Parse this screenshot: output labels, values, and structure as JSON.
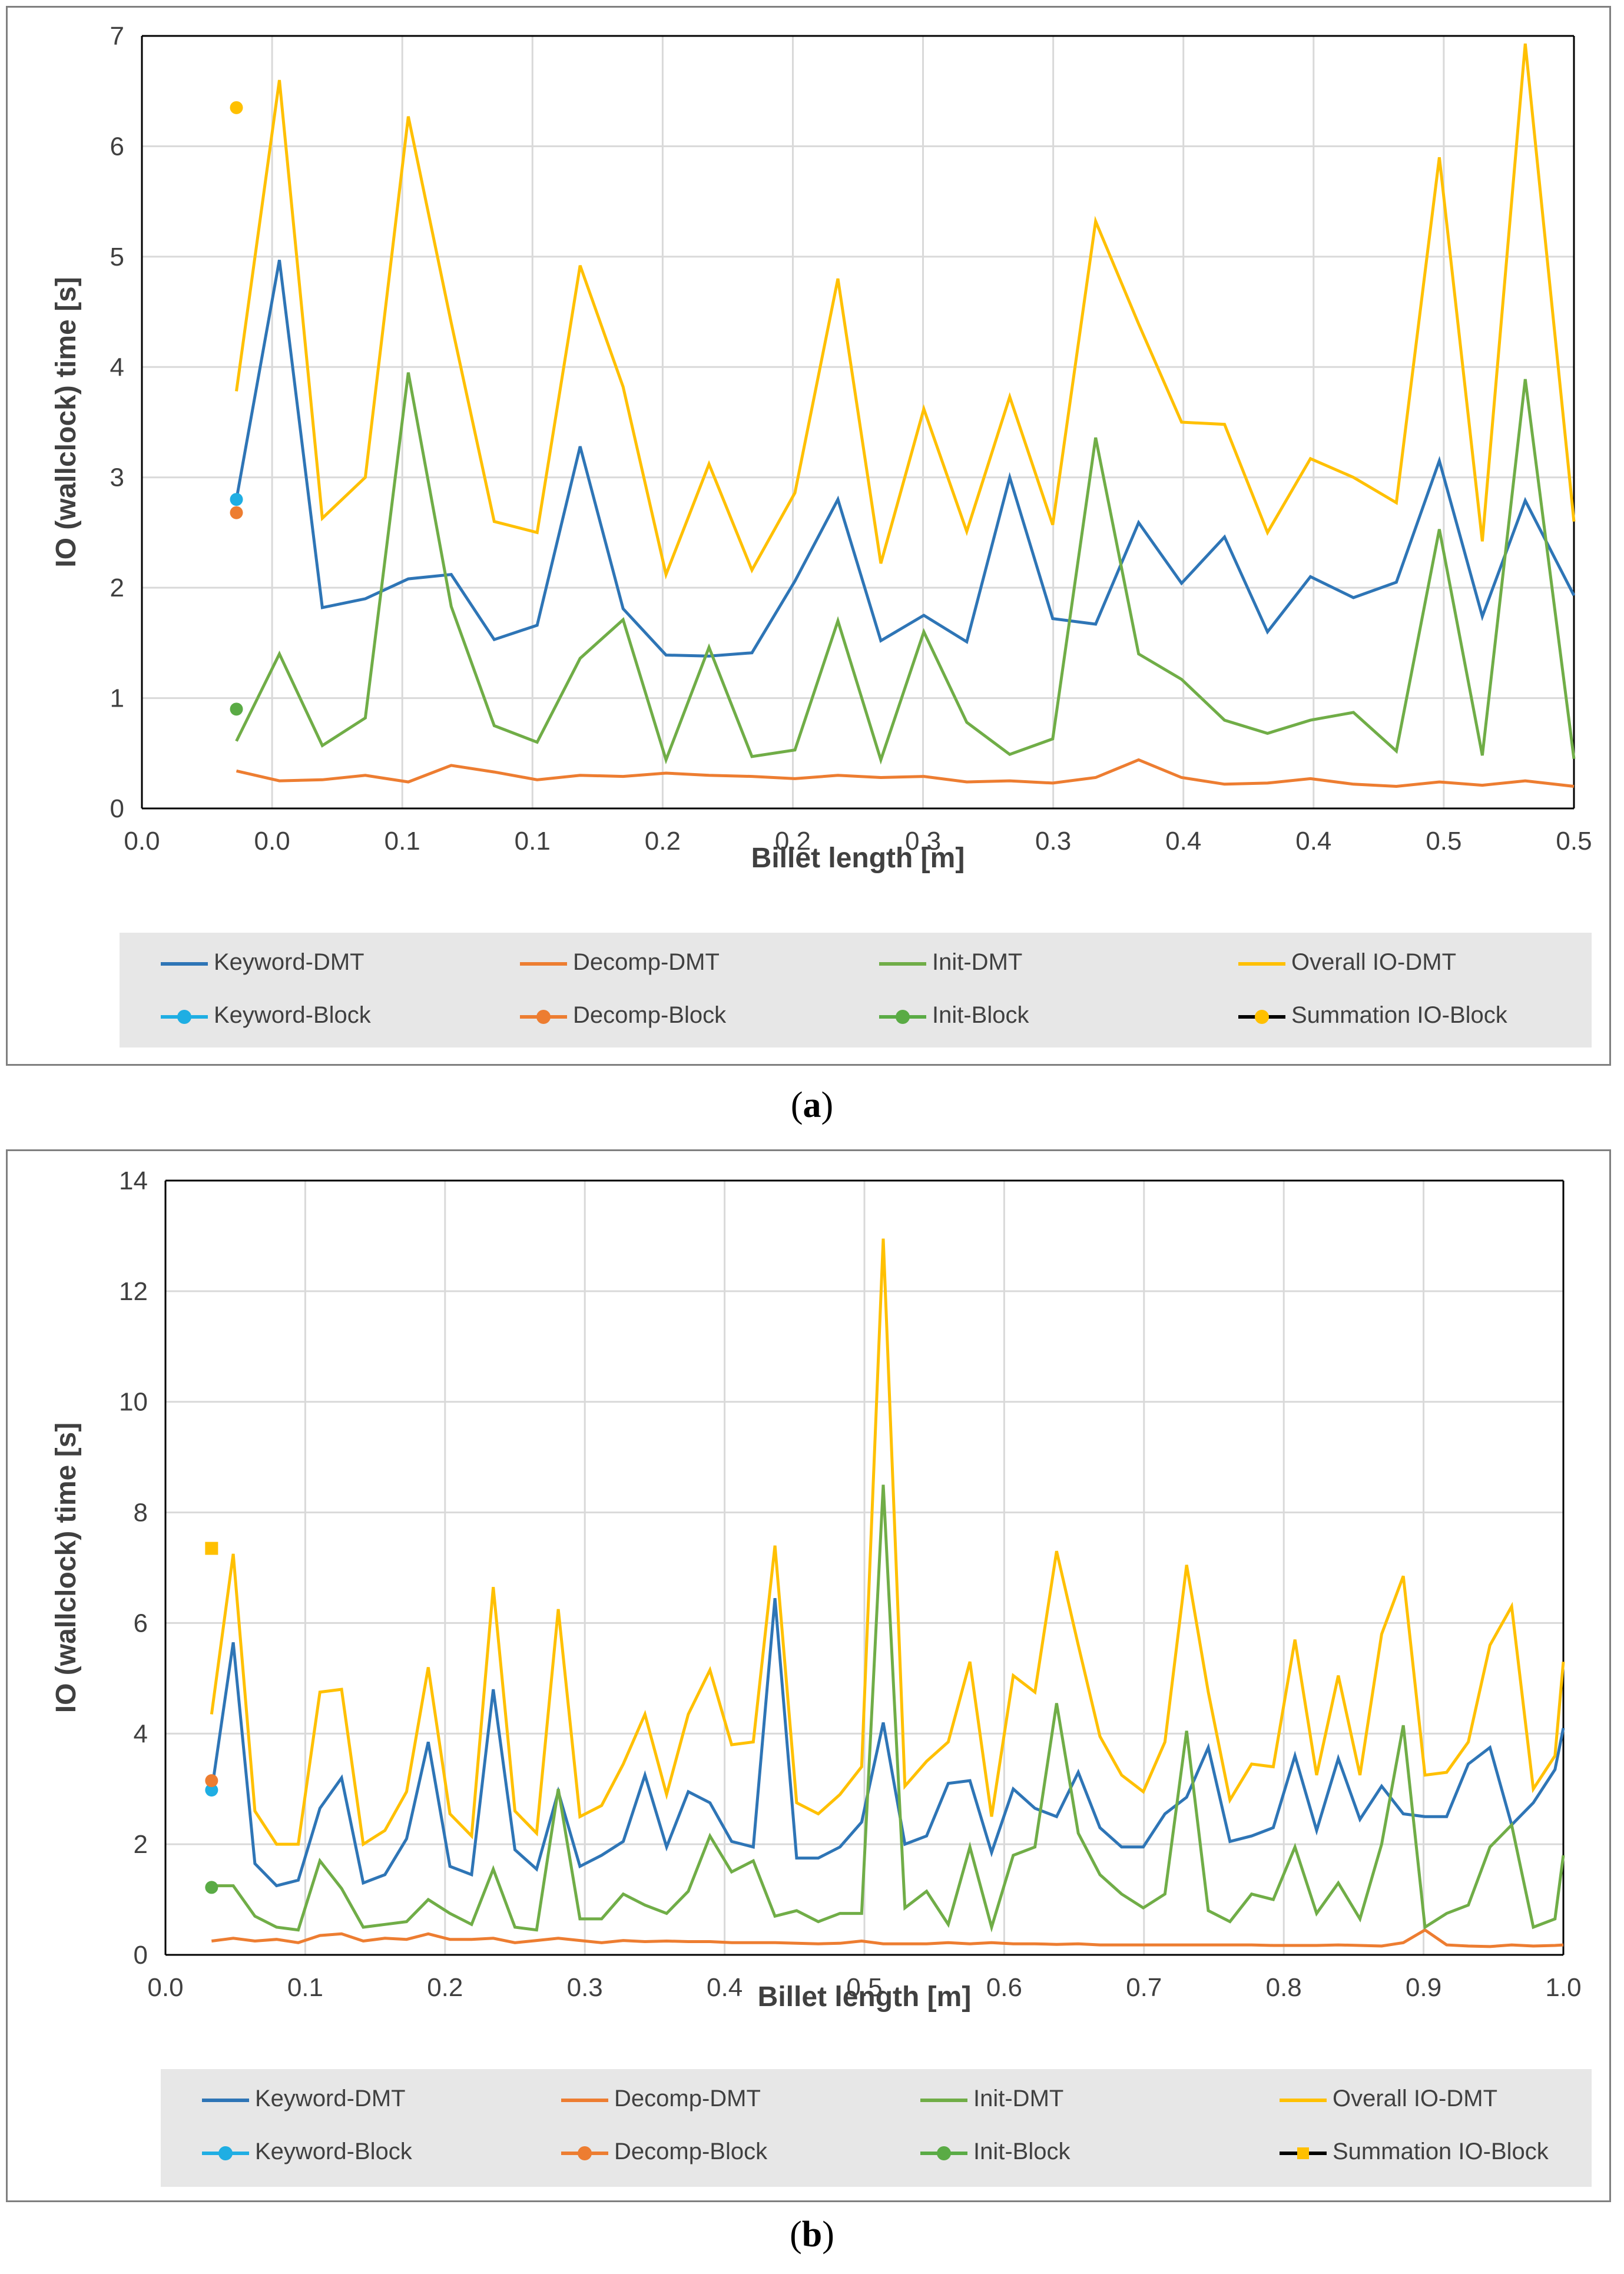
{
  "figures": [
    {
      "caption_label": "a",
      "legend": {
        "row1": [
          "Keyword-DMT",
          "Decomp-DMT",
          "Init-DMT",
          "Overall IO-DMT"
        ],
        "row2": [
          "Keyword-Block",
          "Decomp-Block",
          "Init-Block",
          "Summation IO-Block"
        ]
      }
    },
    {
      "caption_label": "b",
      "legend": {
        "row1": [
          "Keyword-DMT",
          "Decomp-DMT",
          "Init-DMT",
          "Overall IO-DMT"
        ],
        "row2": [
          "Keyword-Block",
          "Decomp-Block",
          "Init-Block",
          "Summation IO-Block"
        ]
      }
    }
  ],
  "colors": {
    "keyword": "#2e75b6",
    "decomp": "#ed7d31",
    "init": "#70ad47",
    "overall": "#ffc000",
    "keyword_block": "#1faee3",
    "decomp_block": "#ed7d31",
    "init_block": "#5aab45",
    "summation_block": "#ffc000",
    "grid": "#d9d9d9",
    "axis_text": "#404040"
  },
  "chart_data": [
    {
      "type": "line",
      "title": "",
      "xlabel": "Billet length [m]",
      "ylabel": "IO (wallclock) time [s]",
      "xlim": [
        0.0,
        0.5
      ],
      "ylim": [
        0,
        7
      ],
      "grid": true,
      "legend_position": "bottom",
      "x_tick_labels": [
        "0.0",
        "0.0",
        "0.1",
        "0.1",
        "0.2",
        "0.2",
        "0.3",
        "0.3",
        "0.4",
        "0.4",
        "0.5",
        "0.5"
      ],
      "y_ticks": [
        0,
        1,
        2,
        3,
        4,
        5,
        6,
        7
      ],
      "x": [
        0.033,
        0.048,
        0.063,
        0.078,
        0.093,
        0.108,
        0.123,
        0.138,
        0.153,
        0.168,
        0.183,
        0.198,
        0.213,
        0.228,
        0.243,
        0.258,
        0.273,
        0.288,
        0.303,
        0.318,
        0.333,
        0.348,
        0.363,
        0.378,
        0.393,
        0.408,
        0.423,
        0.438,
        0.453,
        0.468,
        0.483,
        0.5
      ],
      "series": [
        {
          "name": "Keyword-DMT",
          "values": [
            2.8,
            4.97,
            1.82,
            1.9,
            2.08,
            2.12,
            1.53,
            1.66,
            3.28,
            1.81,
            1.39,
            1.38,
            1.41,
            2.06,
            2.8,
            1.52,
            1.75,
            1.51,
            3.0,
            1.72,
            1.67,
            2.59,
            2.04,
            2.46,
            1.6,
            2.1,
            1.91,
            2.05,
            3.15,
            1.74,
            2.79,
            1.93
          ]
        },
        {
          "name": "Decomp-DMT",
          "values": [
            0.34,
            0.25,
            0.26,
            0.3,
            0.24,
            0.39,
            0.33,
            0.26,
            0.3,
            0.29,
            0.32,
            0.3,
            0.29,
            0.27,
            0.3,
            0.28,
            0.29,
            0.24,
            0.25,
            0.23,
            0.28,
            0.44,
            0.28,
            0.22,
            0.23,
            0.27,
            0.22,
            0.2,
            0.24,
            0.21,
            0.25,
            0.2
          ]
        },
        {
          "name": "Init-DMT",
          "values": [
            0.61,
            1.4,
            0.57,
            0.82,
            3.95,
            1.83,
            0.75,
            0.6,
            1.36,
            1.71,
            0.44,
            1.46,
            0.47,
            0.53,
            1.7,
            0.44,
            1.6,
            0.78,
            0.49,
            0.63,
            3.36,
            1.4,
            1.17,
            0.8,
            0.68,
            0.8,
            0.87,
            0.52,
            2.53,
            0.48,
            3.89,
            0.45
          ]
        },
        {
          "name": "Overall IO-DMT",
          "values": [
            3.78,
            6.6,
            2.63,
            3.0,
            6.27,
            4.4,
            2.6,
            2.5,
            4.92,
            3.82,
            2.12,
            3.12,
            2.16,
            2.86,
            4.8,
            2.22,
            3.62,
            2.51,
            3.73,
            2.57,
            5.32,
            4.39,
            3.5,
            3.48,
            2.5,
            3.17,
            3.0,
            2.77,
            5.9,
            2.42,
            6.93,
            2.6
          ]
        }
      ],
      "block_points": [
        {
          "name": "Keyword-Block",
          "x": 0.033,
          "value": 2.8
        },
        {
          "name": "Decomp-Block",
          "x": 0.033,
          "value": 2.68
        },
        {
          "name": "Init-Block",
          "x": 0.033,
          "value": 0.9
        },
        {
          "name": "Summation IO-Block",
          "x": 0.033,
          "value": 6.35
        }
      ]
    },
    {
      "type": "line",
      "title": "",
      "xlabel": "Billet length [m]",
      "ylabel": "IO (wallclock) time [s]",
      "xlim": [
        0.0,
        1.0
      ],
      "ylim": [
        0,
        14
      ],
      "grid": true,
      "legend_position": "bottom",
      "x_tick_labels": [
        "0.0",
        "0.1",
        "0.2",
        "0.3",
        "0.4",
        "0.5",
        "0.6",
        "0.7",
        "0.8",
        "0.9",
        "1.0"
      ],
      "y_ticks": [
        0,
        2,
        4,
        6,
        8,
        10,
        12,
        14
      ],
      "x": [
        0.033,
        0.0485,
        0.064,
        0.0795,
        0.095,
        0.1105,
        0.126,
        0.1415,
        0.157,
        0.1725,
        0.188,
        0.2035,
        0.219,
        0.2345,
        0.25,
        0.2655,
        0.281,
        0.2965,
        0.312,
        0.3275,
        0.343,
        0.3585,
        0.374,
        0.3895,
        0.405,
        0.4205,
        0.436,
        0.4515,
        0.467,
        0.4825,
        0.498,
        0.5135,
        0.529,
        0.5445,
        0.56,
        0.5755,
        0.591,
        0.6065,
        0.622,
        0.6375,
        0.653,
        0.6685,
        0.684,
        0.6995,
        0.715,
        0.7305,
        0.746,
        0.7615,
        0.777,
        0.7925,
        0.808,
        0.8235,
        0.839,
        0.8545,
        0.87,
        0.8855,
        0.901,
        0.9165,
        0.932,
        0.9475,
        0.963,
        0.9785,
        0.994,
        1.0
      ],
      "series": [
        {
          "name": "Keyword-DMT",
          "values": [
            2.95,
            5.65,
            1.65,
            1.25,
            1.35,
            2.65,
            3.2,
            1.3,
            1.45,
            2.1,
            3.85,
            1.6,
            1.45,
            4.8,
            1.9,
            1.55,
            2.95,
            1.6,
            1.8,
            2.05,
            3.25,
            1.95,
            2.95,
            2.75,
            2.05,
            1.95,
            6.45,
            1.75,
            1.75,
            1.95,
            2.4,
            4.2,
            2.0,
            2.15,
            3.1,
            3.15,
            1.85,
            3.0,
            2.65,
            2.5,
            3.3,
            2.3,
            1.95,
            1.95,
            2.55,
            2.85,
            3.75,
            2.05,
            2.15,
            2.3,
            3.6,
            2.25,
            3.55,
            2.45,
            3.05,
            2.55,
            2.5,
            2.5,
            3.45,
            3.75,
            2.35,
            2.75,
            3.35,
            4.1
          ]
        },
        {
          "name": "Decomp-DMT",
          "values": [
            0.25,
            0.3,
            0.25,
            0.28,
            0.22,
            0.35,
            0.38,
            0.25,
            0.3,
            0.28,
            0.38,
            0.28,
            0.28,
            0.3,
            0.22,
            0.26,
            0.3,
            0.26,
            0.22,
            0.26,
            0.24,
            0.25,
            0.24,
            0.24,
            0.22,
            0.22,
            0.22,
            0.21,
            0.2,
            0.21,
            0.25,
            0.2,
            0.2,
            0.2,
            0.22,
            0.2,
            0.22,
            0.2,
            0.2,
            0.19,
            0.2,
            0.18,
            0.18,
            0.18,
            0.18,
            0.18,
            0.18,
            0.18,
            0.18,
            0.17,
            0.17,
            0.17,
            0.18,
            0.17,
            0.16,
            0.22,
            0.45,
            0.18,
            0.16,
            0.15,
            0.18,
            0.16,
            0.17,
            0.18
          ]
        },
        {
          "name": "Init-DMT",
          "values": [
            1.25,
            1.25,
            0.7,
            0.5,
            0.45,
            1.7,
            1.2,
            0.5,
            0.55,
            0.6,
            1.0,
            0.75,
            0.55,
            1.55,
            0.5,
            0.45,
            3.0,
            0.65,
            0.65,
            1.1,
            0.9,
            0.75,
            1.15,
            2.15,
            1.5,
            1.7,
            0.7,
            0.8,
            0.6,
            0.75,
            0.75,
            8.5,
            0.85,
            1.15,
            0.55,
            1.95,
            0.5,
            1.8,
            1.95,
            4.55,
            2.2,
            1.45,
            1.1,
            0.85,
            1.1,
            4.05,
            0.8,
            0.6,
            1.1,
            1.0,
            1.95,
            0.75,
            1.3,
            0.65,
            2.0,
            4.15,
            0.5,
            0.75,
            0.9,
            1.95,
            2.35,
            0.5,
            0.65,
            1.8
          ]
        },
        {
          "name": "Overall IO-DMT",
          "values": [
            4.35,
            7.25,
            2.6,
            2.0,
            2.0,
            4.75,
            4.8,
            2.0,
            2.25,
            2.95,
            5.2,
            2.55,
            2.15,
            6.65,
            2.6,
            2.2,
            6.25,
            2.5,
            2.7,
            3.45,
            4.35,
            2.9,
            4.35,
            5.15,
            3.8,
            3.85,
            7.4,
            2.75,
            2.55,
            2.9,
            3.4,
            12.95,
            3.05,
            3.5,
            3.85,
            5.3,
            2.5,
            5.05,
            4.75,
            7.3,
            5.6,
            3.95,
            3.25,
            2.95,
            3.85,
            7.05,
            4.75,
            2.8,
            3.45,
            3.4,
            5.7,
            3.25,
            5.05,
            3.25,
            5.8,
            6.85,
            3.25,
            3.3,
            3.85,
            5.6,
            6.3,
            3.0,
            3.6,
            5.3
          ]
        }
      ],
      "block_points": [
        {
          "name": "Keyword-Block",
          "x": 0.033,
          "value": 2.98
        },
        {
          "name": "Decomp-Block",
          "x": 0.033,
          "value": 3.15
        },
        {
          "name": "Init-Block",
          "x": 0.033,
          "value": 1.22
        },
        {
          "name": "Summation IO-Block",
          "x": 0.033,
          "value": 7.35
        }
      ]
    }
  ]
}
